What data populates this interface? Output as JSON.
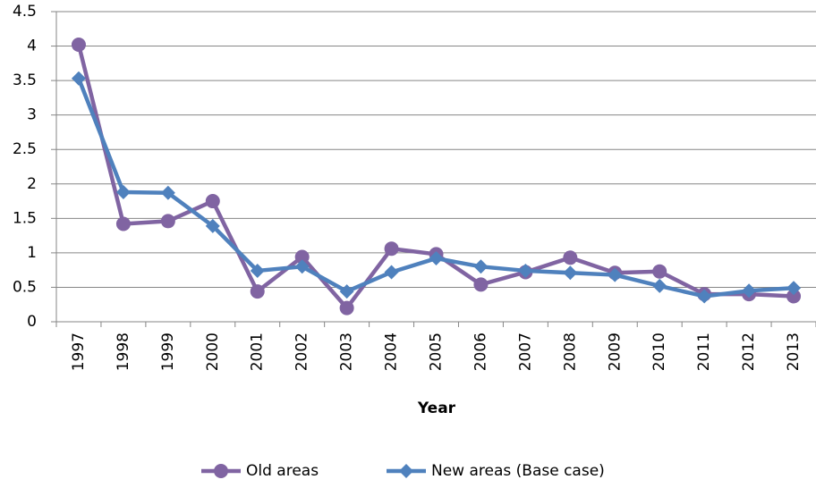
{
  "chart_data": {
    "type": "line",
    "x_label": "Year",
    "categories": [
      "1997",
      "1998",
      "1999",
      "2000",
      "2001",
      "2002",
      "2003",
      "2004",
      "2005",
      "2006",
      "2007",
      "2008",
      "2009",
      "2010",
      "2011",
      "2012",
      "2013"
    ],
    "series": [
      {
        "name": "Old areas",
        "color": "#8064a2",
        "marker": "circle",
        "values": [
          4.02,
          1.42,
          1.46,
          1.75,
          0.44,
          0.94,
          0.2,
          1.06,
          0.98,
          0.54,
          0.72,
          0.93,
          0.71,
          0.73,
          0.4,
          0.4,
          0.37
        ]
      },
      {
        "name": "New areas (Base case)",
        "color": "#4f81bd",
        "marker": "diamond",
        "values": [
          3.53,
          1.88,
          1.87,
          1.39,
          0.74,
          0.8,
          0.44,
          0.72,
          0.92,
          0.8,
          0.74,
          0.71,
          0.68,
          0.52,
          0.37,
          0.45,
          0.49
        ]
      }
    ],
    "ylim": [
      0,
      4.5
    ],
    "yticks": [
      0,
      0.5,
      1,
      1.5,
      2,
      2.5,
      3,
      3.5,
      4,
      4.5
    ],
    "grid": true,
    "legend": "bottom"
  }
}
